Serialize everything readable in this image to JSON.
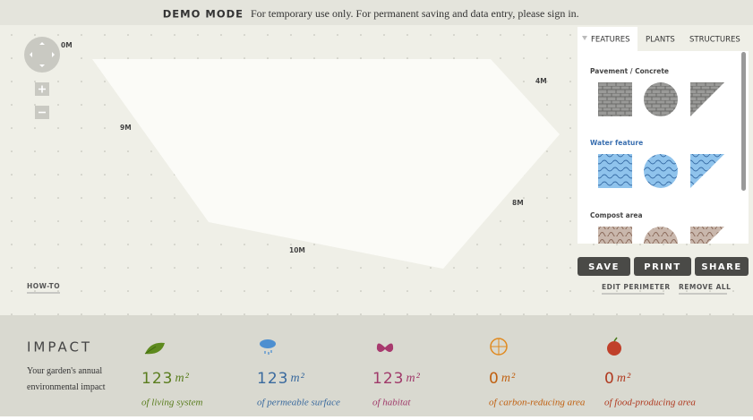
{
  "banner": {
    "mode": "DEMO MODE",
    "message": "For temporary use only. For permanent saving and data entry, please sign in."
  },
  "canvas": {
    "measurements": [
      "0M",
      "4M",
      "9M",
      "8M",
      "10M"
    ],
    "help_link": "HOW-TO"
  },
  "panel": {
    "tabs": [
      "FEATURES",
      "PLANTS",
      "STRUCTURES"
    ],
    "sections": [
      "Pavement / Concrete",
      "Water feature",
      "Compost area"
    ]
  },
  "actions": {
    "buttons": [
      "SAVE",
      "PRINT",
      "SHARE"
    ],
    "links": [
      "EDIT PERIMETER",
      "REMOVE ALL"
    ]
  },
  "impact": {
    "title": "IMPACT",
    "description": "Your garden's annual environmental impact",
    "metrics": [
      {
        "value": 123,
        "unit": "m²",
        "label": "of living system"
      },
      {
        "value": 123,
        "unit": "m²",
        "label": "of permeable surface"
      },
      {
        "value": 123,
        "unit": "m²",
        "label": "of habitat"
      },
      {
        "value": 0,
        "unit": "m²",
        "label": "of carbon-reducing area"
      },
      {
        "value": 0,
        "unit": "m²",
        "label": "of food-producing area"
      }
    ]
  }
}
